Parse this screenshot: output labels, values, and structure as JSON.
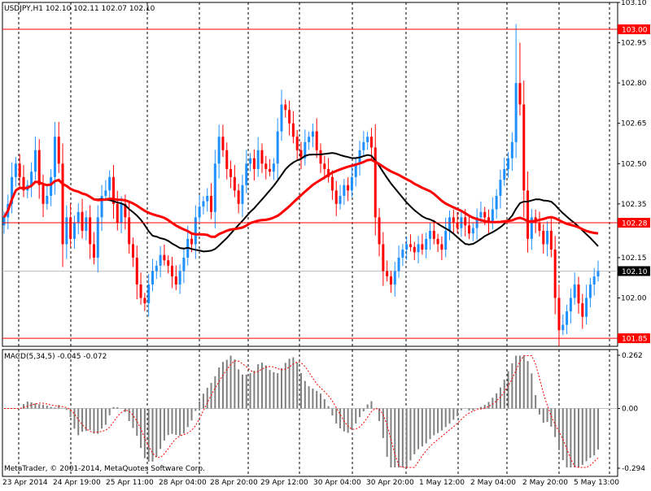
{
  "symbol_header": "USDJPY,H1  102.10 102.11 102.07 102.10",
  "macd_header": "MACD(5,34,5) -0.045 -0.072",
  "copyright": "MetaTrader, © 2001-2014, MetaQuotes Software Corp.",
  "price_scale": [
    "103.10",
    "102.95",
    "102.80",
    "102.65",
    "102.50",
    "102.35",
    "102.15",
    "102.00"
  ],
  "price_levels": [
    {
      "label": "103.00",
      "value": 103.0,
      "color": "#ff0000"
    },
    {
      "label": "102.28",
      "value": 102.28,
      "color": "#ff0000"
    },
    {
      "label": "101.85",
      "value": 101.85,
      "color": "#ff0000"
    }
  ],
  "current_price": {
    "label": "102.10",
    "value": 102.1
  },
  "macd_scale": [
    "0.262",
    "0.00",
    "-0.294"
  ],
  "time_labels": [
    "23 Apr 2014",
    "24 Apr 19:00",
    "25 Apr 11:00",
    "28 Apr 04:00",
    "28 Apr 20:00",
    "29 Apr 12:00",
    "30 Apr 04:00",
    "30 Apr 20:00",
    "1 May 12:00",
    "2 May 04:00",
    "2 May 20:00",
    "5 May 13:00"
  ],
  "colors": {
    "bull": "#1e90ff",
    "bear": "#ff0000",
    "ma_fast": "#ff0000",
    "ma_slow": "#000000",
    "macd_hist": "#808080",
    "macd_signal": "#ff0000",
    "level_line": "#ff0000",
    "grid": "#000000"
  },
  "chart_data": {
    "type": "candlestick",
    "ylim": [
      101.82,
      103.1
    ],
    "closes": [
      102.3,
      102.35,
      102.45,
      102.5,
      102.45,
      102.4,
      102.42,
      102.47,
      102.55,
      102.42,
      102.35,
      102.38,
      102.45,
      102.6,
      102.5,
      102.2,
      102.3,
      102.22,
      102.28,
      102.32,
      102.25,
      102.3,
      102.2,
      102.15,
      102.3,
      102.38,
      102.4,
      102.45,
      102.35,
      102.28,
      102.35,
      102.3,
      102.2,
      102.15,
      102.05,
      102.0,
      101.98,
      102.05,
      102.1,
      102.12,
      102.16,
      102.14,
      102.12,
      102.08,
      102.05,
      102.1,
      102.15,
      102.22,
      102.2,
      102.3,
      102.34,
      102.36,
      102.38,
      102.32,
      102.5,
      102.6,
      102.55,
      102.48,
      102.45,
      102.4,
      102.35,
      102.42,
      102.5,
      102.52,
      102.48,
      102.55,
      102.5,
      102.48,
      102.47,
      102.5,
      102.62,
      102.72,
      102.7,
      102.65,
      102.6,
      102.55,
      102.52,
      102.58,
      102.6,
      102.62,
      102.55,
      102.5,
      102.48,
      102.45,
      102.4,
      102.35,
      102.38,
      102.42,
      102.4,
      102.45,
      102.5,
      102.55,
      102.58,
      102.6,
      102.56,
      102.3,
      102.2,
      102.1,
      102.08,
      102.05,
      102.1,
      102.15,
      102.18,
      102.2,
      102.19,
      102.17,
      102.2,
      102.18,
      102.22,
      102.25,
      102.22,
      102.2,
      102.18,
      102.25,
      102.3,
      102.28,
      102.26,
      102.3,
      102.27,
      102.24,
      102.26,
      102.3,
      102.32,
      102.3,
      102.28,
      102.33,
      102.38,
      102.44,
      102.48,
      102.52,
      102.58,
      102.8,
      102.72,
      102.4,
      102.22,
      102.3,
      102.28,
      102.25,
      102.2,
      102.25,
      102.18,
      102.0,
      101.88,
      101.9,
      101.95,
      102.0,
      102.05,
      101.98,
      101.93,
      102.0,
      102.05,
      102.08,
      102.1
    ]
  }
}
